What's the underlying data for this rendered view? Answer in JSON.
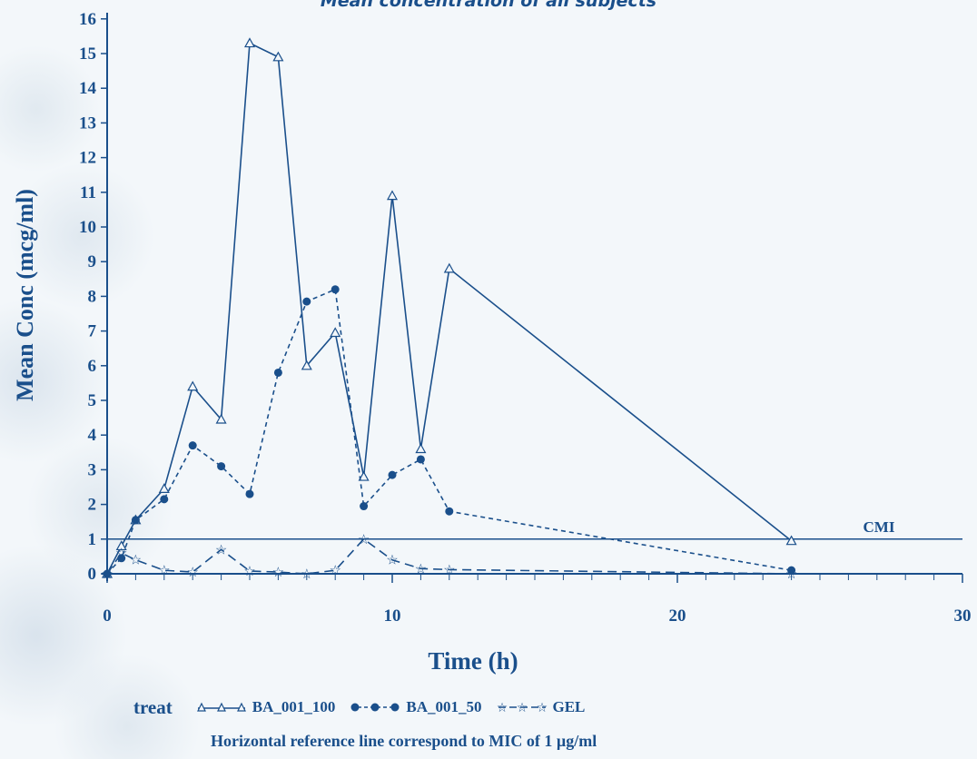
{
  "chart_data": {
    "type": "line",
    "title": "Mean concentration of all subjects",
    "xlabel": "Time (h)",
    "ylabel": "Mean Conc (mcg/ml)",
    "xlim": [
      0,
      30
    ],
    "ylim": [
      0,
      16
    ],
    "x_ticks": [
      "0",
      "10",
      "20",
      "30"
    ],
    "y_ticks": [
      "0",
      "1",
      "2",
      "3",
      "4",
      "5",
      "6",
      "7",
      "8",
      "9",
      "10",
      "11",
      "12",
      "13",
      "14",
      "15",
      "16"
    ],
    "legend_title": "treat",
    "legend_position": "bottom",
    "series": [
      {
        "name": "BA_001_100",
        "marker": "triangle",
        "style": "solid",
        "x": [
          0,
          0.5,
          1,
          2,
          3,
          4,
          5,
          6,
          7,
          8,
          9,
          10,
          11,
          12,
          24
        ],
        "y": [
          0,
          0.8,
          1.55,
          2.45,
          5.4,
          4.45,
          15.3,
          14.9,
          6.0,
          6.95,
          2.8,
          10.9,
          3.6,
          8.8,
          0.95
        ]
      },
      {
        "name": "BA_001_50",
        "marker": "circle",
        "style": "dashed",
        "x": [
          0,
          0.5,
          1,
          2,
          3,
          4,
          5,
          6,
          7,
          8,
          9,
          10,
          11,
          12,
          24
        ],
        "y": [
          0,
          0.45,
          1.55,
          2.15,
          3.7,
          3.1,
          2.3,
          5.8,
          7.85,
          8.2,
          1.95,
          2.85,
          3.3,
          1.8,
          0.1
        ]
      },
      {
        "name": "GEL",
        "marker": "star",
        "style": "longdash",
        "x": [
          0,
          0.5,
          1,
          2,
          3,
          4,
          5,
          6,
          7,
          8,
          9,
          10,
          11,
          12,
          24
        ],
        "y": [
          0,
          0.6,
          0.4,
          0.1,
          0.05,
          0.7,
          0.08,
          0.05,
          0.0,
          0.1,
          1.0,
          0.4,
          0.15,
          0.12,
          0.0
        ]
      }
    ],
    "reference_line": {
      "y": 1,
      "label": "CMI"
    },
    "footnote": "Horizontal reference line correspond to MIC of 1 µg/ml"
  },
  "colors": {
    "line": "#1a4f8b",
    "text": "#1a4f8b",
    "background": "#f3f7fa"
  }
}
